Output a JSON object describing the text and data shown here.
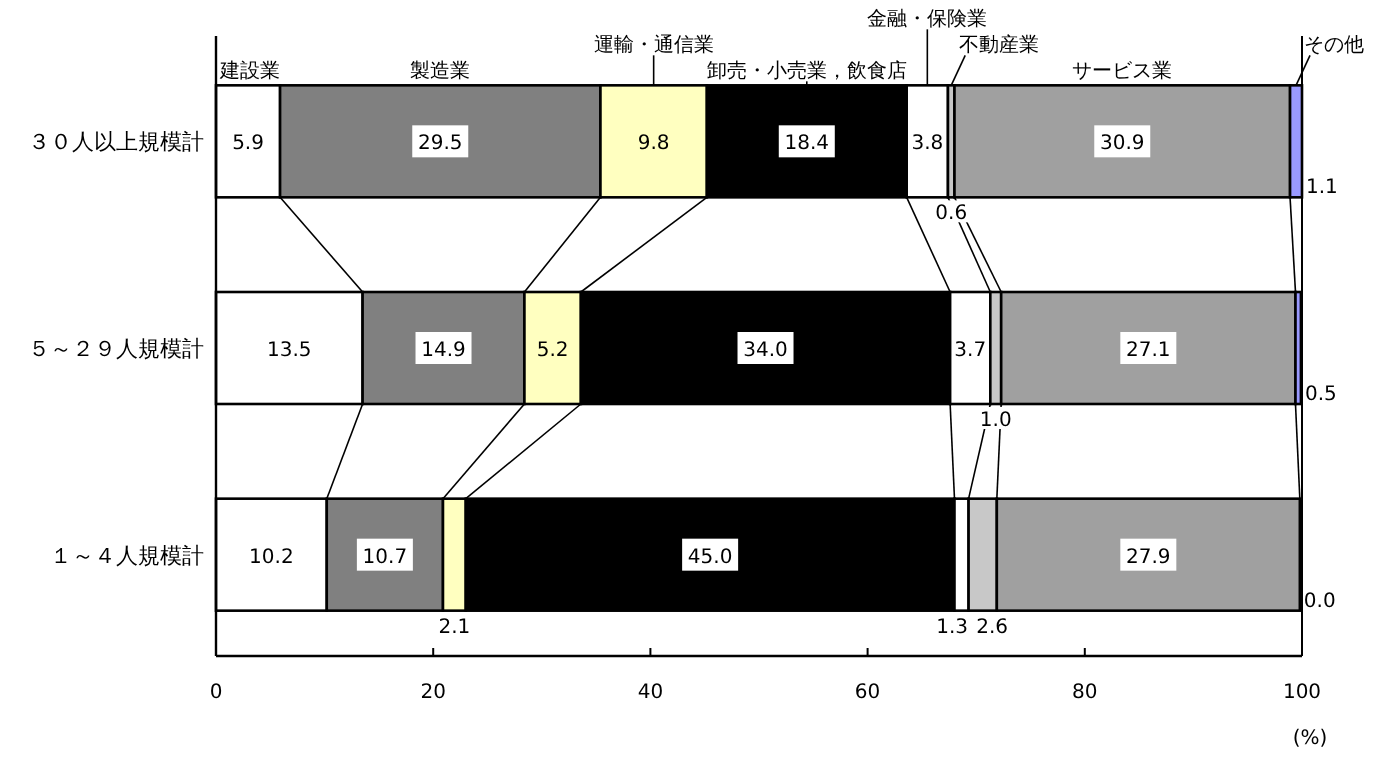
{
  "chart_data": {
    "type": "bar",
    "orientation": "horizontal",
    "stacked": true,
    "categories": [
      "３０人以上規模計",
      "５～２９人規模計",
      "１～４人規模計"
    ],
    "series": [
      {
        "name": "建設業",
        "color": "#ffffff",
        "values": [
          5.9,
          13.5,
          10.2
        ],
        "value_labels": [
          "5.9",
          "13.5",
          "10.2"
        ]
      },
      {
        "name": "製造業",
        "color": "#808080",
        "values": [
          29.5,
          14.9,
          10.7
        ],
        "value_labels": [
          "29.5",
          "14.9",
          "10.7"
        ]
      },
      {
        "name": "運輸・通信業",
        "color": "#ffffc0",
        "values": [
          9.8,
          5.2,
          2.1
        ],
        "value_labels": [
          "9.8",
          "5.2",
          "2.1"
        ]
      },
      {
        "name": "卸売・小売業，飲食店",
        "color": "#000000",
        "values": [
          18.4,
          34.0,
          45.0
        ],
        "value_labels": [
          "18.4",
          "34.0",
          "45.0"
        ]
      },
      {
        "name": "金融・保険業",
        "color": "#ffffff",
        "values": [
          3.8,
          3.7,
          1.3
        ],
        "value_labels": [
          "3.8",
          "3.7",
          "1.3"
        ]
      },
      {
        "name": "不動産業",
        "color": "#c8c8c8",
        "values": [
          0.6,
          1.0,
          2.6
        ],
        "value_labels": [
          "0.6",
          "1.0",
          "2.6"
        ]
      },
      {
        "name": "サービス業",
        "color": "#a0a0a0",
        "values": [
          30.9,
          27.1,
          27.9
        ],
        "value_labels": [
          "30.9",
          "27.1",
          "27.9"
        ]
      },
      {
        "name": "その他",
        "color": "#9999ff",
        "values": [
          1.1,
          0.5,
          0.0
        ],
        "value_labels": [
          "1.1",
          "0.5",
          "0.0"
        ]
      }
    ],
    "xlim": [
      0,
      100
    ],
    "xticks": [
      0,
      20,
      40,
      60,
      80,
      100
    ],
    "xlabel": "(%)"
  }
}
